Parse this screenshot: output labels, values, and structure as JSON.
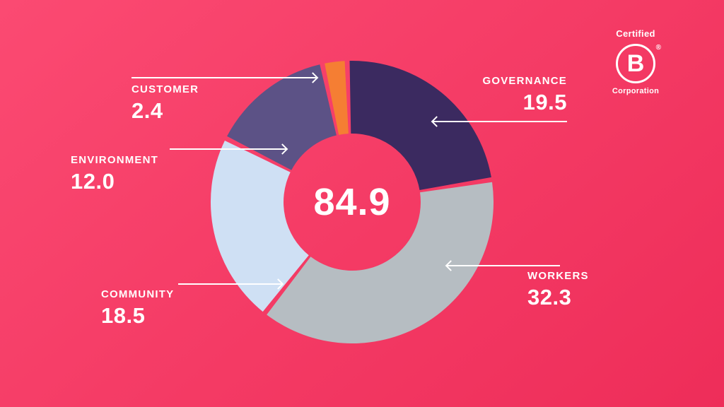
{
  "background": {
    "gradient_start": "#fb4a72",
    "gradient_end": "#ee2d59",
    "text_color": "#ffffff"
  },
  "logo": {
    "top_text": "Certified",
    "letter": "B",
    "registered_mark": "®",
    "bottom_text": "Corporation"
  },
  "chart_data": {
    "type": "pie",
    "subtype": "donut",
    "center_value": "84.9",
    "start_angle": -2,
    "pad_angle": 2,
    "inner_radius_ratio": 0.485,
    "legend_position": "around",
    "grid": false,
    "segments": [
      {
        "name": "governance",
        "label": "GOVERNANCE",
        "value": 19.5,
        "display_value": "19.5",
        "color": "#3b2a60"
      },
      {
        "name": "workers",
        "label": "WORKERS",
        "value": 32.3,
        "display_value": "32.3",
        "color": "#b6bdc2"
      },
      {
        "name": "community",
        "label": "COMMUNITY",
        "value": 18.5,
        "display_value": "18.5",
        "color": "#cfe0f4"
      },
      {
        "name": "environment",
        "label": "ENVIRONMENT",
        "value": 12.0,
        "display_value": "12.0",
        "color": "#5c5286"
      },
      {
        "name": "customer",
        "label": "CUSTOMER",
        "value": 2.4,
        "display_value": "2.4",
        "color": "#f57e33"
      }
    ]
  }
}
